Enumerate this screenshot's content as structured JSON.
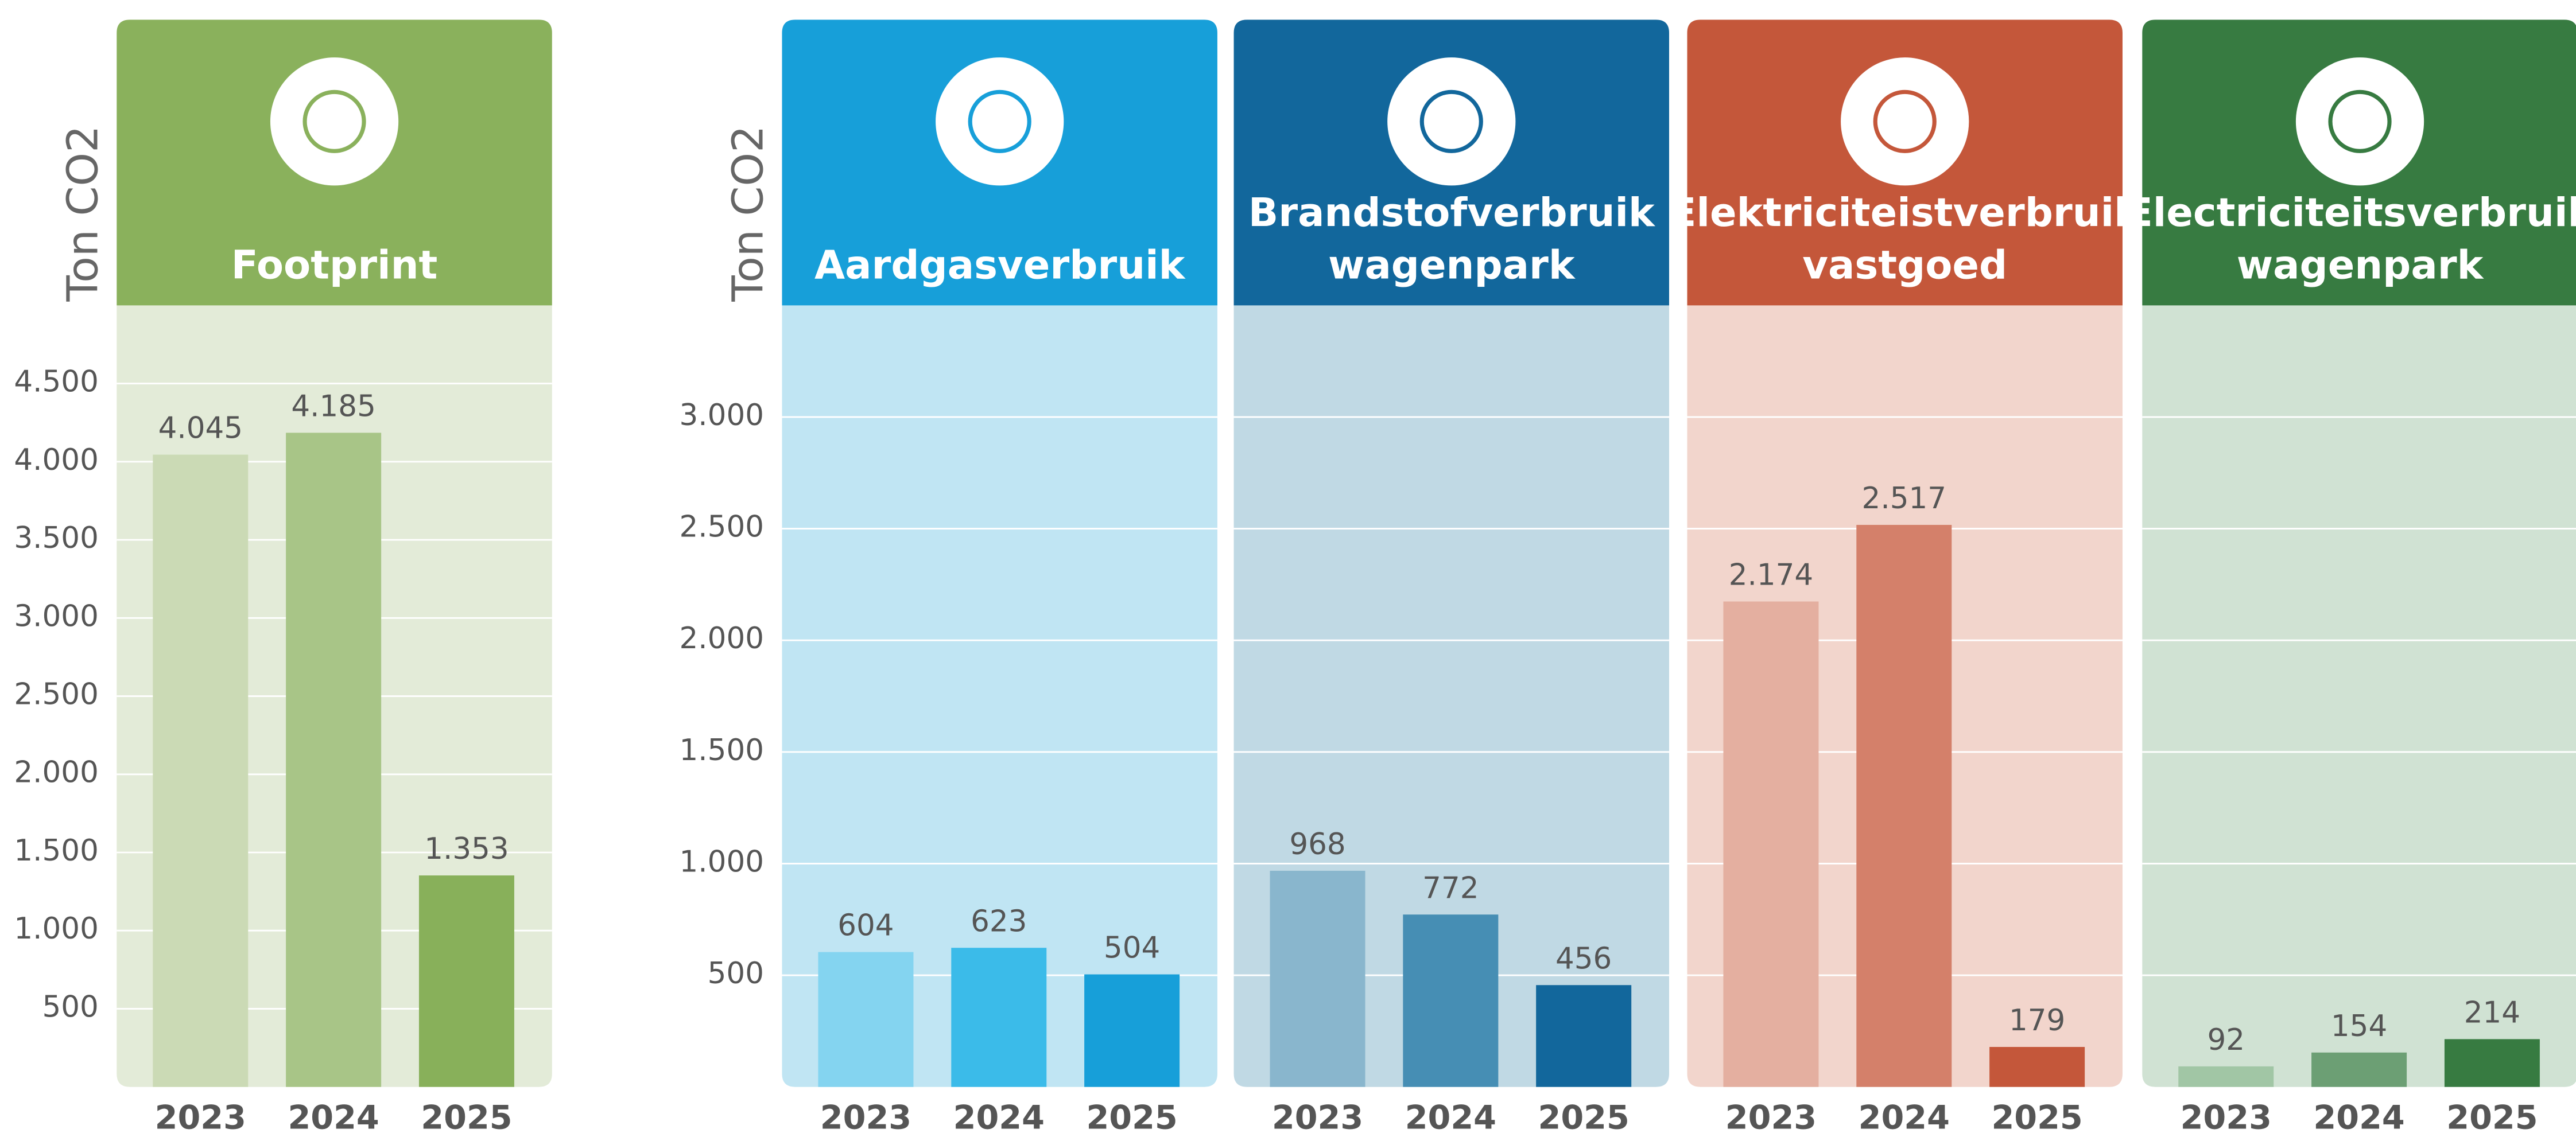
{
  "chart_data": [
    {
      "type": "bar",
      "title": "Footprint",
      "ylabel": "Ton CO2",
      "categories": [
        "2023",
        "2024",
        "2025"
      ],
      "values": [
        4045,
        4185,
        1353
      ],
      "value_labels": [
        "4.045",
        "4.185",
        "1.353"
      ],
      "colors": [
        "#cbdab5",
        "#a8c587",
        "#88b05a"
      ],
      "header_color": "#8ab15c",
      "background": "#e3ebd8",
      "ylim": [
        0,
        5000
      ],
      "yticks": [
        {
          "value": 500,
          "label": "500"
        },
        {
          "value": 1000,
          "label": "1.000"
        },
        {
          "value": 1500,
          "label": "1.500"
        },
        {
          "value": 2000,
          "label": "2.000"
        },
        {
          "value": 2500,
          "label": "2.500"
        },
        {
          "value": 3000,
          "label": "3.000"
        },
        {
          "value": 3500,
          "label": "3.500"
        },
        {
          "value": 4000,
          "label": "4.000"
        },
        {
          "value": 4500,
          "label": "4.500"
        }
      ],
      "grid": true
    },
    {
      "type": "bar",
      "title": "Aardgasverbruik",
      "ylabel": "Ton CO2",
      "categories": [
        "2023",
        "2024",
        "2025"
      ],
      "values": [
        604,
        623,
        504
      ],
      "colors": [
        "#84d4f0",
        "#3bbbe9",
        "#179fd9"
      ],
      "header_color": "#179fd9",
      "background": "#c0e5f3",
      "ylim": [
        0,
        3500
      ],
      "yticks": [
        {
          "value": 500,
          "label": "500"
        },
        {
          "value": 1000,
          "label": "1.000"
        },
        {
          "value": 1500,
          "label": "1.500"
        },
        {
          "value": 2000,
          "label": "2.000"
        },
        {
          "value": 2500,
          "label": "2.500"
        },
        {
          "value": 3000,
          "label": "3.000"
        }
      ],
      "grid": true
    },
    {
      "type": "bar",
      "title": "Brandstofverbruik wagenpark",
      "categories": [
        "2023",
        "2024",
        "2025"
      ],
      "values": [
        968,
        772,
        456
      ],
      "colors": [
        "#89b6cd",
        "#468eb4",
        "#12679c"
      ],
      "header_color": "#12679c",
      "background": "#c0d9e4",
      "ylim": [
        0,
        3500
      ],
      "yticks": [
        500,
        1000,
        1500,
        2000,
        2500,
        3000
      ],
      "show_ytick_labels": false,
      "grid": true
    },
    {
      "type": "bar",
      "title": "Elektriciteistverbruik vastgoed",
      "categories": [
        "2023",
        "2024",
        "2025"
      ],
      "values": [
        2174,
        2517,
        179
      ],
      "value_labels": [
        "2.174",
        "2.517",
        "179"
      ],
      "colors": [
        "#e4afa0",
        "#d4806a",
        "#c4573a"
      ],
      "header_color": "#c4573a",
      "background": "#f2d5cc",
      "ylim": [
        0,
        3500
      ],
      "yticks": [
        500,
        1000,
        1500,
        2000,
        2500,
        3000
      ],
      "show_ytick_labels": false,
      "grid": true
    },
    {
      "type": "bar",
      "title": "Electriciteitsverbruik wagenpark",
      "categories": [
        "2023",
        "2024",
        "2025"
      ],
      "values": [
        92,
        154,
        214
      ],
      "colors": [
        "#a1c6a5",
        "#6c9f74",
        "#377b41"
      ],
      "header_color": "#377b41",
      "background": "#d0e2d3",
      "ylim": [
        0,
        3500
      ],
      "yticks": [
        500,
        1000,
        1500,
        2000,
        2500,
        3000
      ],
      "show_ytick_labels": false,
      "grid": true
    }
  ]
}
